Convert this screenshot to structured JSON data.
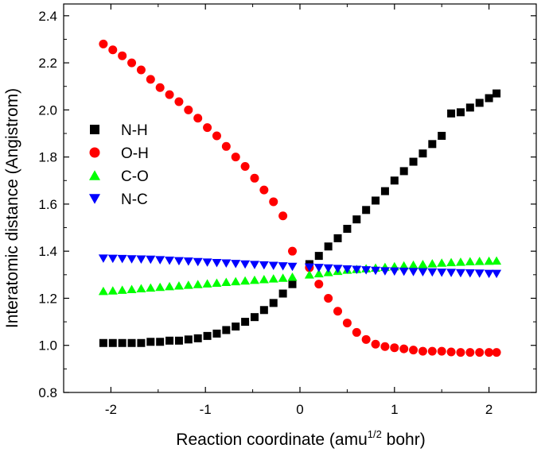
{
  "chart_data": {
    "type": "scatter",
    "title": "",
    "xlabel": {
      "prefix": "Reaction coordinate (amu",
      "sup": "1/2",
      "suffix": " bohr)"
    },
    "ylabel": "Interatomic distance (Angistrom)",
    "xlim": [
      -2.5,
      2.5
    ],
    "ylim": [
      0.8,
      2.45
    ],
    "xticks": [
      -2,
      -1,
      0,
      1,
      2
    ],
    "xtick_labels": [
      "-2",
      "-1",
      "0",
      "1",
      "2"
    ],
    "yticks": [
      0.8,
      1.0,
      1.2,
      1.4,
      1.6,
      1.8,
      2.0,
      2.2,
      2.4
    ],
    "ytick_labels": [
      "0.8",
      "1.0",
      "1.2",
      "1.4",
      "1.6",
      "1.8",
      "2.0",
      "2.2",
      "2.4"
    ],
    "legend_position": "upper-left",
    "x": [
      -2.08,
      -1.98,
      -1.88,
      -1.78,
      -1.68,
      -1.58,
      -1.48,
      -1.38,
      -1.28,
      -1.18,
      -1.08,
      -0.98,
      -0.88,
      -0.78,
      -0.68,
      -0.58,
      -0.48,
      -0.38,
      -0.28,
      -0.18,
      -0.08,
      0.1,
      0.2,
      0.3,
      0.4,
      0.5,
      0.6,
      0.7,
      0.8,
      0.9,
      1.0,
      1.1,
      1.2,
      1.3,
      1.4,
      1.5,
      1.6,
      1.7,
      1.8,
      1.9,
      2.0,
      2.08
    ],
    "series": [
      {
        "name": "N-H",
        "marker": "square",
        "color": "#000000",
        "values": [
          1.01,
          1.01,
          1.01,
          1.01,
          1.01,
          1.015,
          1.015,
          1.02,
          1.02,
          1.025,
          1.03,
          1.04,
          1.05,
          1.065,
          1.08,
          1.1,
          1.12,
          1.15,
          1.18,
          1.22,
          1.26,
          1.345,
          1.38,
          1.42,
          1.455,
          1.495,
          1.535,
          1.575,
          1.615,
          1.655,
          1.7,
          1.74,
          1.78,
          1.815,
          1.855,
          1.89,
          1.985,
          1.99,
          2.01,
          2.03,
          2.05,
          2.07
        ]
      },
      {
        "name": "O-H",
        "marker": "circle",
        "color": "#ff0000",
        "values": [
          2.28,
          2.255,
          2.23,
          2.2,
          2.17,
          2.13,
          2.095,
          2.065,
          2.035,
          2.0,
          1.965,
          1.925,
          1.89,
          1.845,
          1.8,
          1.76,
          1.71,
          1.66,
          1.61,
          1.55,
          1.4,
          1.33,
          1.26,
          1.2,
          1.145,
          1.095,
          1.055,
          1.025,
          1.005,
          0.995,
          0.99,
          0.985,
          0.98,
          0.975,
          0.975,
          0.975,
          0.972,
          0.97,
          0.97,
          0.97,
          0.97,
          0.97
        ]
      },
      {
        "name": "C-O",
        "marker": "triangle-up",
        "color": "#00ff00",
        "values": [
          1.23,
          1.232,
          1.235,
          1.238,
          1.241,
          1.244,
          1.247,
          1.25,
          1.253,
          1.256,
          1.259,
          1.262,
          1.265,
          1.268,
          1.271,
          1.274,
          1.277,
          1.28,
          1.283,
          1.286,
          1.29,
          1.3,
          1.305,
          1.31,
          1.315,
          1.32,
          1.323,
          1.326,
          1.329,
          1.332,
          1.335,
          1.338,
          1.341,
          1.344,
          1.347,
          1.35,
          1.352,
          1.354,
          1.356,
          1.357,
          1.358,
          1.359
        ]
      },
      {
        "name": "N-C",
        "marker": "triangle-down",
        "color": "#0000ff",
        "values": [
          1.37,
          1.369,
          1.368,
          1.367,
          1.366,
          1.365,
          1.363,
          1.361,
          1.359,
          1.357,
          1.355,
          1.353,
          1.351,
          1.349,
          1.347,
          1.345,
          1.343,
          1.341,
          1.339,
          1.337,
          1.335,
          1.332,
          1.33,
          1.328,
          1.326,
          1.324,
          1.322,
          1.32,
          1.318,
          1.316,
          1.315,
          1.314,
          1.313,
          1.312,
          1.311,
          1.31,
          1.309,
          1.308,
          1.307,
          1.306,
          1.305,
          1.305
        ]
      }
    ]
  }
}
